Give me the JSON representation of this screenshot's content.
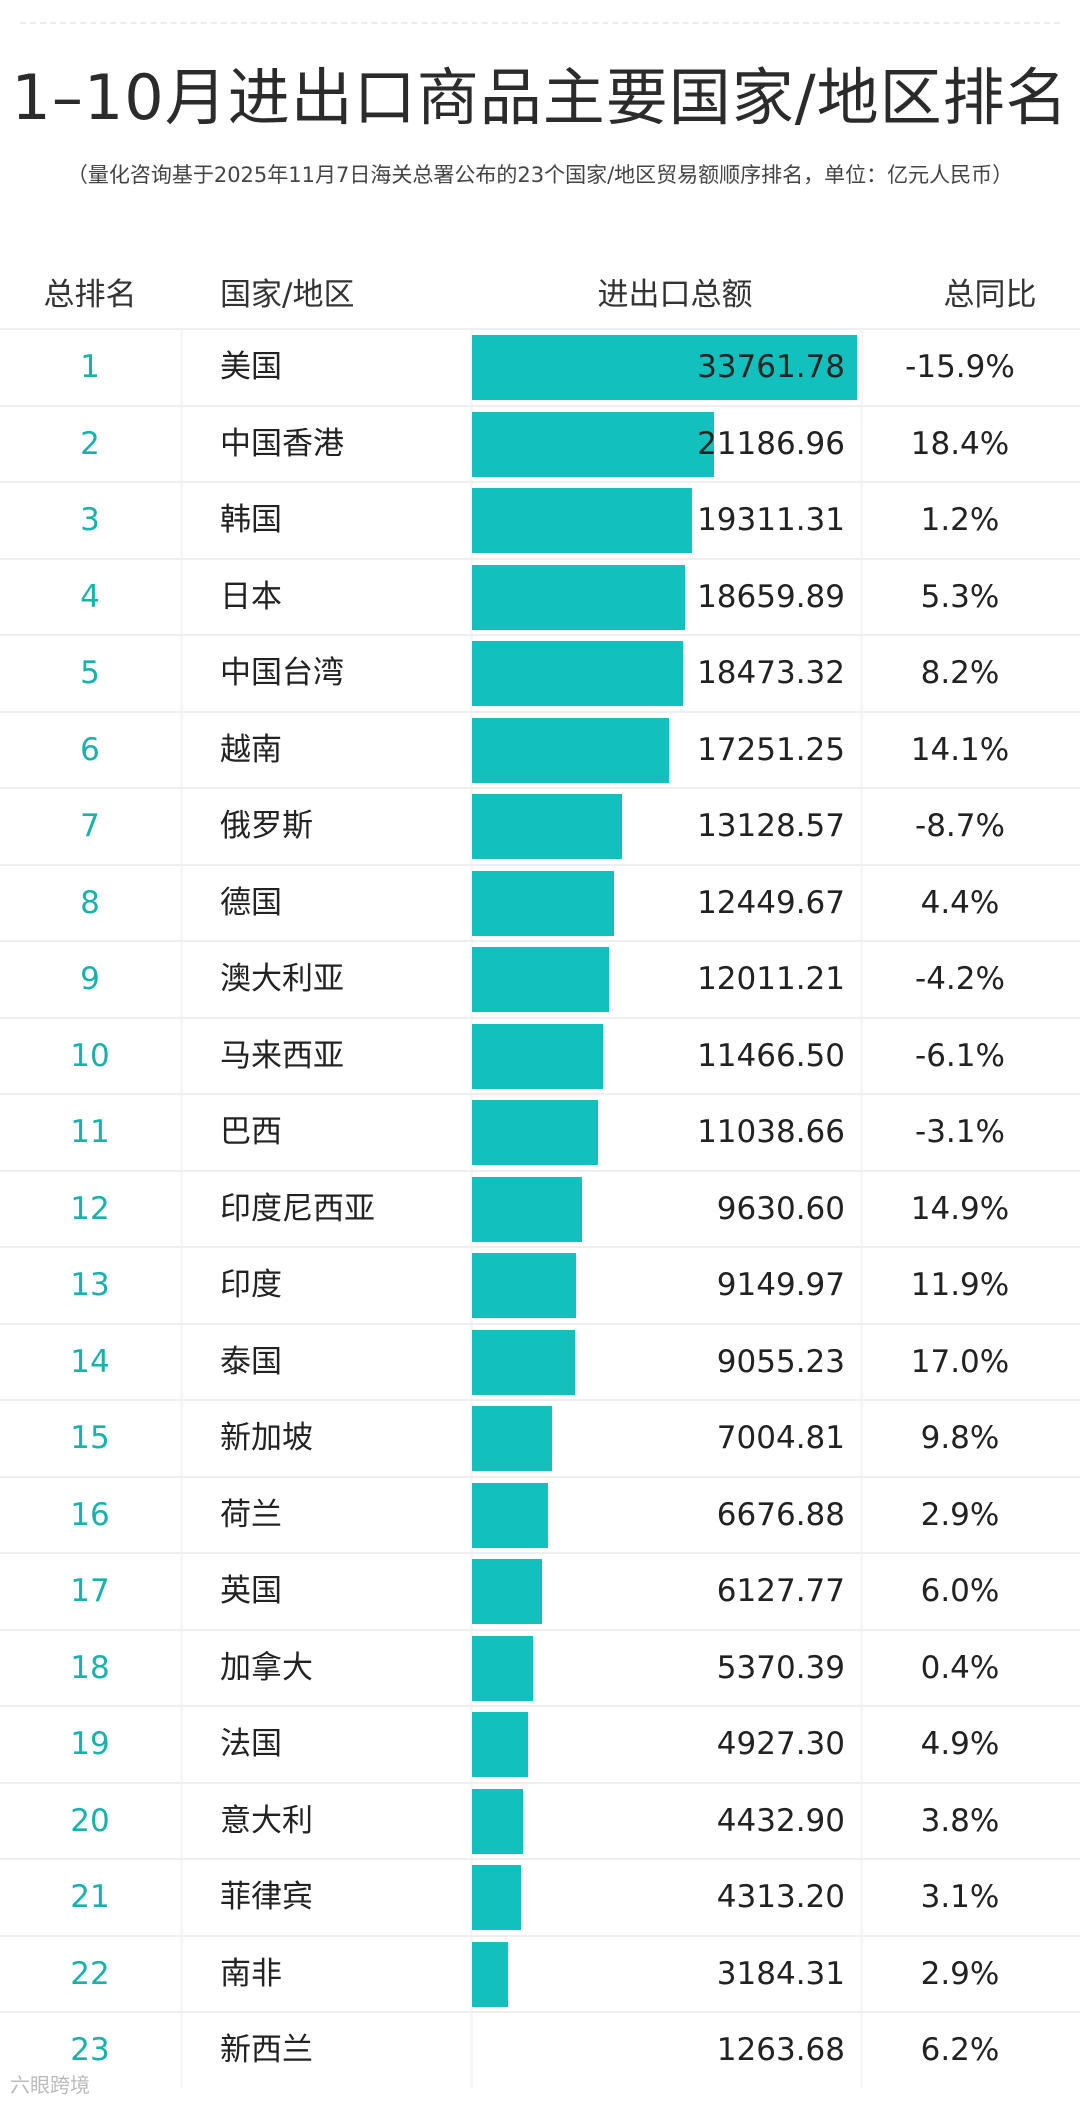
{
  "title": "1–10月进出口商品主要国家/地区排名",
  "subtitle": "（量化咨询基于2025年11月7日海关总署公布的23个国家/地区贸易额顺序排名，单位：亿元人民币）",
  "header": {
    "rank": "总排名",
    "country": "国家/地区",
    "total": "进出口总额",
    "yoy": "总同比"
  },
  "watermark": "六眼跨境",
  "colors": {
    "bar": "#12c1be",
    "rank": "#17b2ad"
  },
  "chart_data": {
    "type": "bar",
    "orientation": "horizontal",
    "categories": [
      "美国",
      "中国香港",
      "韩国",
      "日本",
      "中国台湾",
      "越南",
      "俄罗斯",
      "德国",
      "澳大利亚",
      "马来西亚",
      "巴西",
      "印度尼西亚",
      "印度",
      "泰国",
      "新加坡",
      "荷兰",
      "英国",
      "加拿大",
      "法国",
      "意大利",
      "菲律宾",
      "南非",
      "新西兰"
    ],
    "ranks": [
      "1",
      "2",
      "3",
      "4",
      "5",
      "6",
      "7",
      "8",
      "9",
      "10",
      "11",
      "12",
      "13",
      "14",
      "15",
      "16",
      "17",
      "18",
      "19",
      "20",
      "21",
      "22",
      "23"
    ],
    "values": [
      33761.78,
      21186.96,
      19311.31,
      18659.89,
      18473.32,
      17251.25,
      13128.57,
      12449.67,
      12011.21,
      11466.5,
      11038.66,
      9630.6,
      9149.97,
      9055.23,
      7004.81,
      6676.88,
      6127.77,
      5370.39,
      4927.3,
      4432.9,
      4313.2,
      3184.31,
      1263.68
    ],
    "value_labels": [
      "33761.78",
      "21186.96",
      "19311.31",
      "18659.89",
      "18473.32",
      "17251.25",
      "13128.57",
      "12449.67",
      "12011.21",
      "11466.50",
      "11038.66",
      "9630.60",
      "9149.97",
      "9055.23",
      "7004.81",
      "6676.88",
      "6127.77",
      "5370.39",
      "4927.30",
      "4432.90",
      "4313.20",
      "3184.31",
      "1263.68"
    ],
    "yoy": [
      "-15.9%",
      "18.4%",
      "1.2%",
      "5.3%",
      "8.2%",
      "14.1%",
      "-8.7%",
      "4.4%",
      "-4.2%",
      "-6.1%",
      "-3.1%",
      "14.9%",
      "11.9%",
      "17.0%",
      "9.8%",
      "2.9%",
      "6.0%",
      "0.4%",
      "4.9%",
      "3.8%",
      "3.1%",
      "2.9%",
      "6.2%"
    ],
    "xlim": [
      0,
      33761.78
    ],
    "grid": false,
    "legend": "none"
  }
}
